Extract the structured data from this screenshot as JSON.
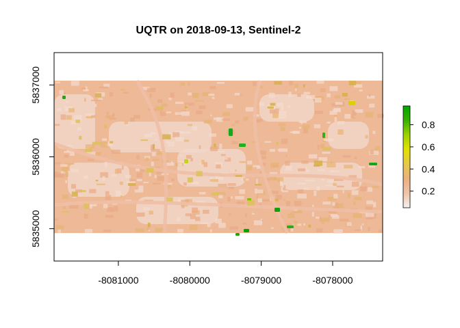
{
  "chart_data": {
    "type": "heatmap",
    "title": "UQTR on 2018-09-13, Sentinel-2",
    "xlabel": "",
    "ylabel": "",
    "xlim": [
      -8081900,
      -8077300
    ],
    "ylim": [
      5834550,
      5837450
    ],
    "raster_extent": {
      "x": [
        -8081900,
        -8077300
      ],
      "y": [
        5834950,
        5837050
      ]
    },
    "x_ticks": [
      {
        "value": -8081000,
        "label": "-8081000"
      },
      {
        "value": -8080000,
        "label": "-8080000"
      },
      {
        "value": -8079000,
        "label": "-8079000"
      },
      {
        "value": -8078000,
        "label": "-8078000"
      }
    ],
    "y_ticks": [
      {
        "value": 5835000,
        "label": "5835000"
      },
      {
        "value": 5836000,
        "label": "5836000"
      },
      {
        "value": 5837000,
        "label": "5837000"
      }
    ],
    "colorbar": {
      "range": [
        0.05,
        0.97
      ],
      "ticks": [
        {
          "value": 0.2,
          "label": "0.2"
        },
        {
          "value": 0.4,
          "label": "0.4"
        },
        {
          "value": 0.6,
          "label": "0.6"
        },
        {
          "value": 0.8,
          "label": "0.8"
        }
      ],
      "colors": [
        "#f2f2f2",
        "#f1c3a6",
        "#ebb07f",
        "#e6c94a",
        "#e2e100",
        "#9fd300",
        "#36b200",
        "#00a600"
      ]
    },
    "grid": false,
    "legend": "right"
  }
}
